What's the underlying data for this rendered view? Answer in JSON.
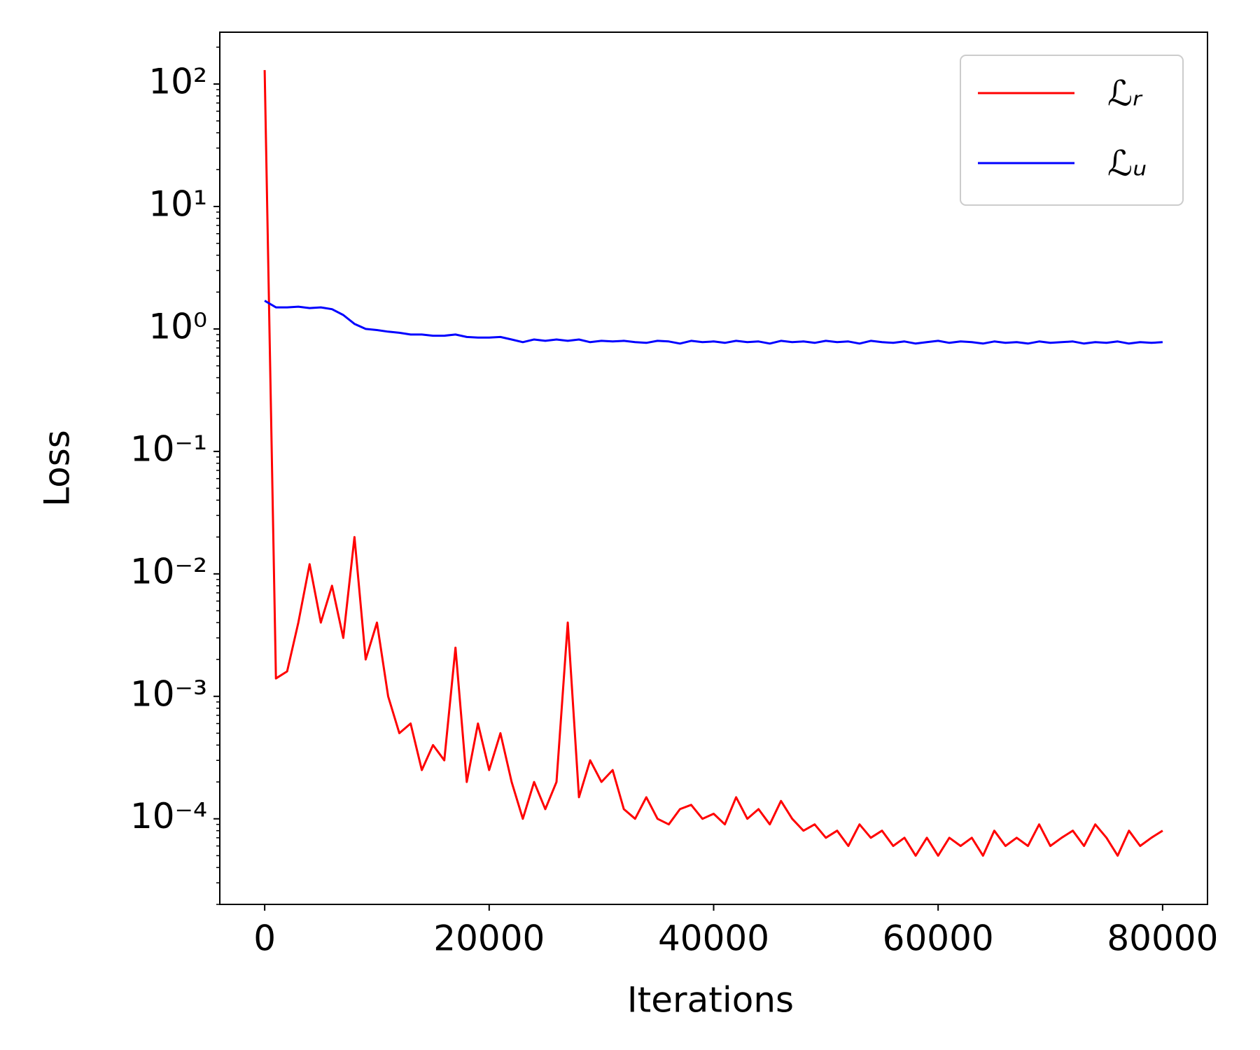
{
  "chart_data": {
    "type": "line",
    "xlabel": "Iterations",
    "ylabel": "Loss",
    "yscale": "log",
    "legend": "upper right",
    "xlim": [
      -4000,
      84000
    ],
    "ylim": [
      2e-05,
      265
    ],
    "xticks": [
      0,
      20000,
      40000,
      60000,
      80000
    ],
    "yticks": [
      {
        "value": 0.0001,
        "label": "10⁻⁴"
      },
      {
        "value": 0.001,
        "label": "10⁻³"
      },
      {
        "value": 0.01,
        "label": "10⁻²"
      },
      {
        "value": 0.1,
        "label": "10⁻¹"
      },
      {
        "value": 1,
        "label": "10⁰"
      },
      {
        "value": 10,
        "label": "10¹"
      },
      {
        "value": 100,
        "label": "10²"
      }
    ],
    "x": [
      0,
      1000,
      2000,
      3000,
      4000,
      5000,
      6000,
      7000,
      8000,
      9000,
      10000,
      11000,
      12000,
      13000,
      14000,
      15000,
      16000,
      17000,
      18000,
      19000,
      20000,
      21000,
      22000,
      23000,
      24000,
      25000,
      26000,
      27000,
      28000,
      29000,
      30000,
      31000,
      32000,
      33000,
      34000,
      35000,
      36000,
      37000,
      38000,
      39000,
      40000,
      41000,
      42000,
      43000,
      44000,
      45000,
      46000,
      47000,
      48000,
      49000,
      50000,
      51000,
      52000,
      53000,
      54000,
      55000,
      56000,
      57000,
      58000,
      59000,
      60000,
      61000,
      62000,
      63000,
      64000,
      65000,
      66000,
      67000,
      68000,
      69000,
      70000,
      71000,
      72000,
      73000,
      74000,
      75000,
      76000,
      77000,
      78000,
      79000,
      80000
    ],
    "series": [
      {
        "name": "ℒᵣ",
        "color": "#ff0000",
        "values": [
          130,
          0.0014,
          0.0016,
          0.004,
          0.012,
          0.004,
          0.008,
          0.003,
          0.02,
          0.002,
          0.004,
          0.001,
          0.0005,
          0.0006,
          0.00025,
          0.0004,
          0.0003,
          0.0025,
          0.0002,
          0.0006,
          0.00025,
          0.0005,
          0.0002,
          0.0001,
          0.0002,
          0.00012,
          0.0002,
          0.004,
          0.00015,
          0.0003,
          0.0002,
          0.00025,
          0.00012,
          0.0001,
          0.00015,
          0.0001,
          9e-05,
          0.00012,
          0.00013,
          0.0001,
          0.00011,
          9e-05,
          0.00015,
          0.0001,
          0.00012,
          9e-05,
          0.00014,
          0.0001,
          8e-05,
          9e-05,
          7e-05,
          8e-05,
          6e-05,
          9e-05,
          7e-05,
          8e-05,
          6e-05,
          7e-05,
          5e-05,
          7e-05,
          5e-05,
          7e-05,
          6e-05,
          7e-05,
          5e-05,
          8e-05,
          6e-05,
          7e-05,
          6e-05,
          9e-05,
          6e-05,
          7e-05,
          8e-05,
          6e-05,
          9e-05,
          7e-05,
          5e-05,
          8e-05,
          6e-05,
          7e-05,
          8e-05
        ]
      },
      {
        "name": "ℒᵤ",
        "color": "#0000ff",
        "values": [
          1.7,
          1.5,
          1.5,
          1.52,
          1.48,
          1.5,
          1.45,
          1.3,
          1.1,
          1.0,
          0.98,
          0.95,
          0.93,
          0.9,
          0.9,
          0.88,
          0.88,
          0.9,
          0.86,
          0.85,
          0.85,
          0.86,
          0.82,
          0.78,
          0.82,
          0.8,
          0.82,
          0.8,
          0.82,
          0.78,
          0.8,
          0.79,
          0.8,
          0.78,
          0.77,
          0.8,
          0.79,
          0.76,
          0.8,
          0.78,
          0.79,
          0.77,
          0.8,
          0.78,
          0.79,
          0.76,
          0.8,
          0.78,
          0.79,
          0.77,
          0.8,
          0.78,
          0.79,
          0.76,
          0.8,
          0.78,
          0.77,
          0.79,
          0.76,
          0.78,
          0.8,
          0.77,
          0.79,
          0.78,
          0.76,
          0.79,
          0.77,
          0.78,
          0.76,
          0.79,
          0.77,
          0.78,
          0.79,
          0.76,
          0.78,
          0.77,
          0.79,
          0.76,
          0.78,
          0.77,
          0.78
        ]
      }
    ]
  }
}
